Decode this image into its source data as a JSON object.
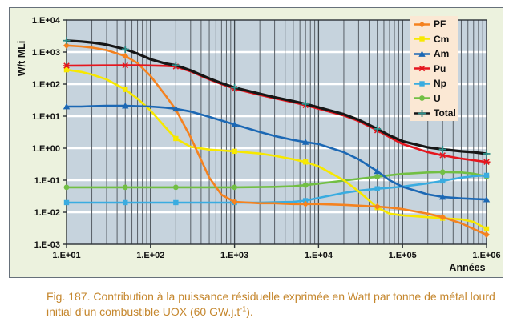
{
  "figure": {
    "caption_line1": "Fig. 187. Contribution à la puissance résiduelle exprimée en Watt par tonne de métal lourd",
    "caption_line2_pre": "initial d’un combustible UOX (60 GW.j.t",
    "caption_line2_sup": "-1",
    "caption_line2_post": ")."
  },
  "style": {
    "panel_bg": "#ECF2DE",
    "panel_border": "#66707A",
    "plot_bg": "#C6D3DD",
    "grid_white": "#FFFFFF",
    "grid_minor": "#585F66",
    "grid_major": "#40474D",
    "axis_color": "#2B3136",
    "legend_bg": "#FBE8D4",
    "caption_color": "#C5872E",
    "total_marker_color": "#2E8F8A"
  },
  "chart_data": {
    "type": "line",
    "x_axis": {
      "label": "Années",
      "scale": "log",
      "min": 10,
      "max": 1000000,
      "tick_values": [
        10,
        100,
        1000,
        10000,
        100000,
        1000000
      ],
      "tick_labels": [
        "1.E+01",
        "1.E+02",
        "1.E+03",
        "1.E+04",
        "1.E+05",
        "1.E+06"
      ]
    },
    "y_axis": {
      "label": "W/t MLi",
      "scale": "log",
      "min": 0.001,
      "max": 10000,
      "tick_values": [
        10000,
        1000,
        100,
        10,
        1,
        0.1,
        0.01,
        0.001
      ],
      "tick_labels": [
        "1.E+04",
        "1.E+03",
        "1.E+02",
        "1.E+01",
        "1.E+00",
        "1.E-01",
        "1.E-02",
        "1.E-03"
      ]
    },
    "x": [
      10,
      15,
      20,
      30,
      50,
      70,
      100,
      150,
      200,
      300,
      500,
      700,
      1000,
      2000,
      3000,
      5000,
      7000,
      10000,
      20000,
      30000,
      50000,
      70000,
      100000,
      200000,
      300000,
      500000,
      700000,
      1000000
    ],
    "series": [
      {
        "name": "PF",
        "color": "#F5821F",
        "marker": "diamond",
        "values": [
          1600,
          1500,
          1380,
          1150,
          750,
          450,
          180,
          45,
          16,
          2.2,
          0.12,
          0.035,
          0.021,
          0.019,
          0.019,
          0.018,
          0.018,
          0.018,
          0.017,
          0.016,
          0.015,
          0.014,
          0.0125,
          0.009,
          0.007,
          0.0045,
          0.003,
          0.002
        ]
      },
      {
        "name": "Cm",
        "color": "#F7E800",
        "marker": "square",
        "values": [
          280,
          240,
          200,
          140,
          68,
          35,
          15,
          4.5,
          2.0,
          1.1,
          0.9,
          0.85,
          0.8,
          0.68,
          0.58,
          0.45,
          0.37,
          0.27,
          0.1,
          0.045,
          0.014,
          0.009,
          0.008,
          0.007,
          0.0065,
          0.006,
          0.005,
          0.003
        ]
      },
      {
        "name": "Am",
        "color": "#1C68B4",
        "marker": "triangle",
        "values": [
          20,
          20,
          20.5,
          21,
          21,
          20.5,
          20,
          18.5,
          17,
          14,
          9.5,
          7.3,
          5.5,
          3.2,
          2.4,
          1.8,
          1.55,
          1.35,
          0.75,
          0.45,
          0.19,
          0.1,
          0.062,
          0.036,
          0.03,
          0.027,
          0.026,
          0.025
        ]
      },
      {
        "name": "Pu",
        "color": "#E5161E",
        "marker": "asterisk",
        "values": [
          375,
          378,
          380,
          383,
          385,
          385,
          380,
          370,
          355,
          250,
          140,
          100,
          72,
          46,
          36,
          27,
          22,
          17,
          10.5,
          7,
          3.6,
          2.2,
          1.35,
          0.75,
          0.6,
          0.47,
          0.42,
          0.37
        ]
      },
      {
        "name": "Np",
        "color": "#3AACE0",
        "marker": "square",
        "values": [
          0.02,
          0.02,
          0.02,
          0.02,
          0.02,
          0.02,
          0.02,
          0.02,
          0.02,
          0.02,
          0.02,
          0.02,
          0.02,
          0.02,
          0.0205,
          0.021,
          0.023,
          0.028,
          0.04,
          0.047,
          0.054,
          0.058,
          0.063,
          0.08,
          0.095,
          0.12,
          0.133,
          0.142
        ]
      },
      {
        "name": "U",
        "color": "#72BF44",
        "marker": "circle",
        "values": [
          0.06,
          0.06,
          0.06,
          0.06,
          0.06,
          0.06,
          0.06,
          0.06,
          0.06,
          0.06,
          0.06,
          0.06,
          0.06,
          0.061,
          0.062,
          0.065,
          0.07,
          0.078,
          0.097,
          0.11,
          0.128,
          0.143,
          0.158,
          0.175,
          0.18,
          0.175,
          0.16,
          0.13
        ]
      },
      {
        "name": "Total",
        "color": "#161616",
        "marker": "plus",
        "values": [
          2275,
          2138,
          1980,
          1694,
          1224,
          890,
          595,
          438,
          390,
          267,
          150,
          108,
          78,
          50,
          39,
          29.4,
          24,
          18.7,
          11.5,
          7.7,
          4.0,
          2.5,
          1.65,
          1.06,
          0.92,
          0.8,
          0.75,
          0.67
        ]
      }
    ],
    "legend_entries": [
      "PF",
      "Cm",
      "Am",
      "Pu",
      "Np",
      "U",
      "Total"
    ],
    "legend_position": "top-right",
    "grid": true
  }
}
